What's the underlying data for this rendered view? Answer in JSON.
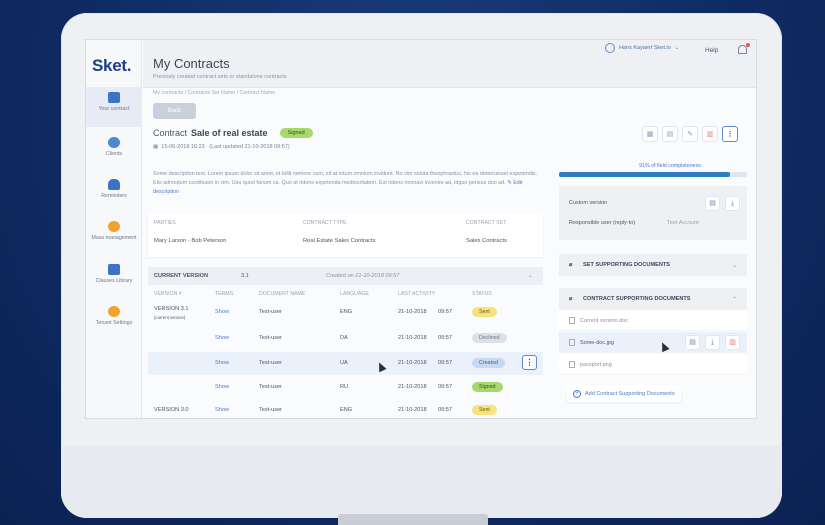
{
  "app": {
    "logo": "Sket."
  },
  "sidebar": {
    "items": [
      {
        "label": "Your contract",
        "icon": "contract-icon",
        "color": "#3b73c8"
      },
      {
        "label": "Clients",
        "icon": "clients-icon",
        "color": "#4f86d6"
      },
      {
        "label": "Reminders",
        "icon": "bell-icon",
        "color": "#3b73c8"
      },
      {
        "label": "Mass management",
        "icon": "gears-icon",
        "color": "#f1a22f"
      },
      {
        "label": "Clauses Library",
        "icon": "library-icon",
        "color": "#3b73c8"
      },
      {
        "label": "Tenant Settings",
        "icon": "settings-icon",
        "color": "#f1a22f"
      }
    ]
  },
  "header": {
    "title": "My Contracts",
    "subtitle": "Previosly created contract sets or standalone contracts",
    "user": "Hans Kayaert Sket.io",
    "help": "Help"
  },
  "breadcrumb": "My contracts  /  Contracts Set Name  /  Contract Name",
  "back_label": "Back",
  "contract": {
    "prefix": "Contract",
    "name": "Sale of real estate",
    "status": "Signed",
    "created": "15-06-2018  16:23",
    "updated": "(Last updated 21-10-2018  09:57)",
    "description": "Some description text. Lorem ipsum dolor sit amet, et tollit nemore cum, sit at intum omnium invidunt. No vim soluta theophrastus, his ea deterruisset expetendis. Elis admodum contitiuam in vim. Usu quod fanum ca. Quo at ridens expetenda mediocritatem. Est ridens nonnavi invenire ad, idque persius duo ad.",
    "edit_label": "Edit description"
  },
  "parties": {
    "headers": [
      "PARTIES",
      "CONTRACT TYPE",
      "CONTRACT SET"
    ],
    "values": [
      "Mary Larson  -  Bob Peterson",
      "Real Estate Sales Contracts",
      "Sales Contracts"
    ]
  },
  "versions": {
    "bar": {
      "label": "CURRENT VERSION",
      "number": "3.1",
      "created": "Created on 21-10-2018  09:57"
    },
    "headers": [
      "VERSION #",
      "TERMS",
      "DOCUMENT NAME",
      "LANGUAGE",
      "LAST ACTIVITY",
      "STATUS"
    ],
    "rows": [
      {
        "version": "VERSION 3.1",
        "note": "(current version)",
        "terms": "Show",
        "doc": "Test-user",
        "lang": "ENG",
        "date": "21-10-2018",
        "time": "09:57",
        "status": "Sent",
        "kind": "sent"
      },
      {
        "version": "",
        "note": "",
        "terms": "Show",
        "doc": "Test-user",
        "lang": "DA",
        "date": "21-10-2018",
        "time": "09:57",
        "status": "Declined",
        "kind": "declined"
      },
      {
        "version": "",
        "note": "",
        "terms": "Show",
        "doc": "Test-user",
        "lang": "UA",
        "date": "21-10-2018",
        "time": "09:57",
        "status": "Created",
        "kind": "created"
      },
      {
        "version": "",
        "note": "",
        "terms": "Show",
        "doc": "Test-user",
        "lang": "RU",
        "date": "21-10-2018",
        "time": "09:57",
        "status": "Signed",
        "kind": "signed"
      },
      {
        "version": "VERSION 3.0",
        "note": "",
        "terms": "Show",
        "doc": "Test-user",
        "lang": "ENG",
        "date": "21-10-2018",
        "time": "09:57",
        "status": "Sent",
        "kind": "sent"
      }
    ]
  },
  "right": {
    "completeness_label": "91% of field completeness",
    "completeness": 0.91,
    "custom_version_label": "Custom version",
    "responsible_label": "Responsible user (reply-to)",
    "responsible_value": "Test-Account",
    "set_docs_label": "SET SUPPORTING DOCUMENTS",
    "contract_docs_label": "CONTRACT SUPPORTING DOCUMENTS",
    "docs": [
      "Current version.doc",
      "Some-doc.jpg",
      "passport.png"
    ],
    "add_label": "Add Contract Supporting Documents"
  }
}
